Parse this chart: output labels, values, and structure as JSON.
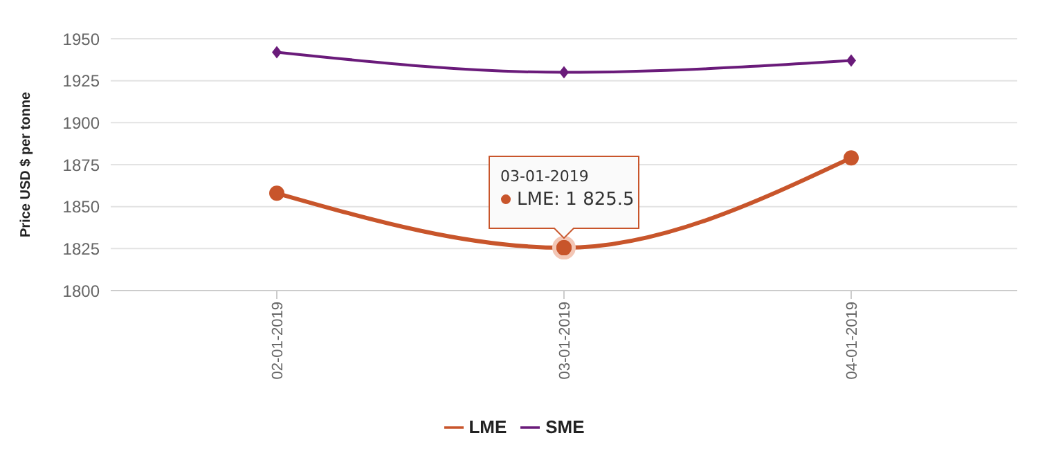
{
  "chart_data": {
    "type": "line",
    "ylabel": "Price USD $ per tonne",
    "categories": [
      "02-01-2019",
      "03-01-2019",
      "04-01-2019"
    ],
    "series": [
      {
        "name": "LME",
        "color": "#c8552b",
        "values": [
          1858,
          1825.5,
          1879
        ],
        "marker": "circle"
      },
      {
        "name": "SME",
        "color": "#6a1b7a",
        "values": [
          1942,
          1930,
          1937
        ],
        "marker": "diamond"
      }
    ],
    "ylim": [
      1800,
      1950
    ],
    "yticks": [
      1800,
      1825,
      1850,
      1875,
      1900,
      1925,
      1950
    ],
    "grid": "y",
    "legend": "bottom",
    "annotations": [
      "03-01-2019",
      {
        "text": "LME: 1 825.5",
        "x": "03-01-2019",
        "y": 1825.5
      }
    ]
  }
}
